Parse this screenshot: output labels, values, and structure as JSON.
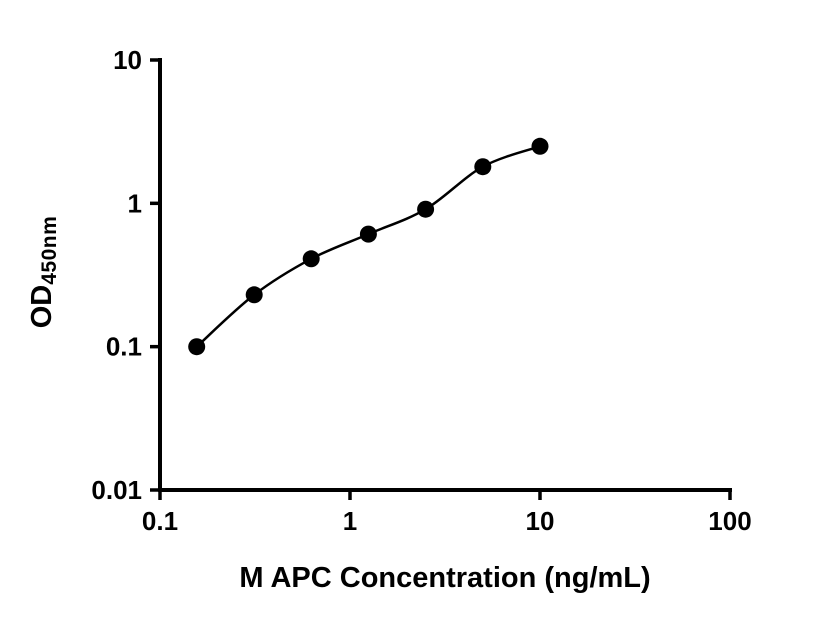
{
  "chart_data": {
    "type": "scatter",
    "title": "",
    "xlabel": "M APC Concentration (ng/mL)",
    "ylabel_main": "OD",
    "ylabel_sub": "450nm",
    "x_scale": "log",
    "y_scale": "log",
    "xlim": [
      0.1,
      100
    ],
    "ylim": [
      0.01,
      10
    ],
    "x_ticks": [
      0.1,
      1,
      10,
      100
    ],
    "x_tick_labels": [
      "0.1",
      "1",
      "10",
      "100"
    ],
    "y_ticks": [
      0.01,
      0.1,
      1,
      10
    ],
    "y_tick_labels": [
      "0.01",
      "0.1",
      "1",
      "10"
    ],
    "x": [
      0.156,
      0.313,
      0.625,
      1.25,
      2.5,
      5,
      10
    ],
    "y": [
      0.1,
      0.23,
      0.41,
      0.61,
      0.91,
      1.8,
      2.5
    ],
    "fit": "4PL standard curve through points",
    "grid": false,
    "legend": "none",
    "marker_color": "#000000",
    "line_color": "#000000",
    "axis_color": "#000000",
    "background": "#ffffff"
  }
}
